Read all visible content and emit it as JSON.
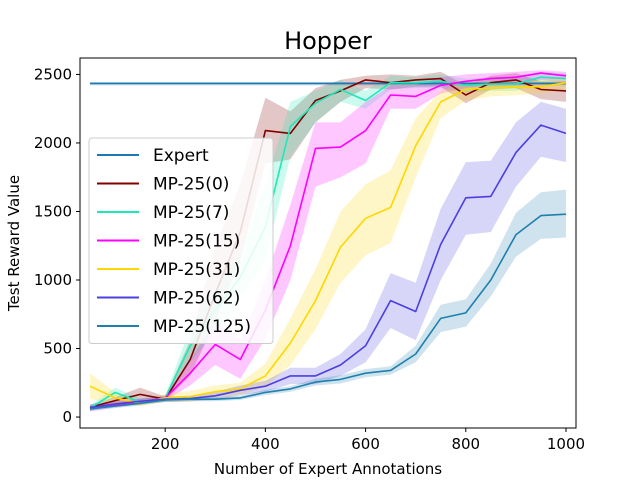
{
  "chart_data": {
    "type": "line",
    "title": "Hopper",
    "xlabel": "Number of Expert Annotations",
    "ylabel": "Test Reward Value",
    "xlim": [
      30,
      1020
    ],
    "ylim": [
      -80,
      2620
    ],
    "xticks": [
      200,
      400,
      600,
      800,
      1000
    ],
    "yticks": [
      0,
      500,
      1000,
      1500,
      2000,
      2500
    ],
    "grid": false,
    "legend_position": "center-left",
    "x": [
      50,
      100,
      150,
      200,
      250,
      300,
      350,
      400,
      450,
      500,
      550,
      600,
      650,
      700,
      750,
      800,
      850,
      900,
      950,
      1000
    ],
    "series": [
      {
        "name": "Expert",
        "color": "#1f77b4",
        "values": [
          2435,
          2435,
          2435,
          2435,
          2435,
          2435,
          2435,
          2435,
          2435,
          2435,
          2435,
          2435,
          2435,
          2435,
          2435,
          2435,
          2435,
          2435,
          2435,
          2435
        ],
        "lower": [
          2420,
          2420,
          2420,
          2420,
          2420,
          2420,
          2420,
          2420,
          2420,
          2420,
          2420,
          2420,
          2420,
          2420,
          2420,
          2420,
          2420,
          2420,
          2420,
          2420
        ],
        "upper": [
          2445,
          2445,
          2445,
          2445,
          2445,
          2445,
          2445,
          2445,
          2445,
          2445,
          2445,
          2445,
          2445,
          2445,
          2445,
          2445,
          2445,
          2445,
          2445,
          2445
        ]
      },
      {
        "name": "MP-25(0)",
        "color": "#800000",
        "values": [
          70,
          120,
          165,
          130,
          420,
          900,
          1350,
          2090,
          2070,
          2310,
          2380,
          2460,
          2440,
          2460,
          2470,
          2350,
          2440,
          2460,
          2390,
          2380
        ],
        "lower": [
          50,
          95,
          120,
          115,
          300,
          700,
          1150,
          1850,
          1880,
          2150,
          2300,
          2400,
          2390,
          2410,
          2410,
          2290,
          2390,
          2400,
          2320,
          2300
        ],
        "upper": [
          90,
          145,
          215,
          150,
          560,
          1250,
          1700,
          2330,
          2230,
          2400,
          2460,
          2490,
          2500,
          2490,
          2520,
          2420,
          2490,
          2510,
          2450,
          2450
        ]
      },
      {
        "name": "MP-25(7)",
        "color": "#1de9b6",
        "values": [
          65,
          180,
          110,
          140,
          520,
          780,
          1020,
          1390,
          2120,
          2290,
          2390,
          2310,
          2440,
          2440,
          2450,
          2420,
          2430,
          2430,
          2480,
          2470
        ],
        "lower": [
          45,
          140,
          90,
          120,
          400,
          620,
          860,
          1150,
          1900,
          2150,
          2300,
          2250,
          2390,
          2400,
          2400,
          2370,
          2380,
          2380,
          2440,
          2420
        ],
        "upper": [
          85,
          215,
          135,
          160,
          650,
          950,
          1200,
          1700,
          2300,
          2380,
          2460,
          2380,
          2490,
          2480,
          2500,
          2470,
          2480,
          2480,
          2520,
          2510
        ]
      },
      {
        "name": "MP-25(15)",
        "color": "#ff00ff",
        "values": [
          60,
          90,
          110,
          140,
          320,
          530,
          420,
          780,
          1250,
          1960,
          1970,
          2090,
          2350,
          2340,
          2420,
          2450,
          2470,
          2480,
          2510,
          2490
        ],
        "lower": [
          40,
          70,
          90,
          120,
          230,
          380,
          280,
          570,
          1000,
          1680,
          1750,
          1850,
          2250,
          2250,
          2360,
          2400,
          2420,
          2420,
          2460,
          2440
        ],
        "upper": [
          80,
          110,
          130,
          160,
          420,
          700,
          560,
          1000,
          1550,
          2150,
          2150,
          2300,
          2420,
          2420,
          2480,
          2500,
          2510,
          2520,
          2530,
          2520
        ]
      },
      {
        "name": "MP-25(31)",
        "color": "#ffd700",
        "values": [
          225,
          140,
          100,
          140,
          150,
          185,
          205,
          300,
          540,
          850,
          1240,
          1450,
          1530,
          1980,
          2300,
          2390,
          2400,
          2410,
          2410,
          2440
        ],
        "lower": [
          130,
          100,
          80,
          110,
          110,
          140,
          160,
          220,
          380,
          640,
          980,
          1180,
          1270,
          1750,
          2180,
          2310,
          2340,
          2350,
          2360,
          2390
        ],
        "upper": [
          320,
          180,
          120,
          170,
          190,
          230,
          250,
          390,
          720,
          1080,
          1500,
          1700,
          1800,
          2180,
          2380,
          2450,
          2450,
          2450,
          2460,
          2480
        ]
      },
      {
        "name": "MP-25(62)",
        "color": "#4b3fe0",
        "values": [
          70,
          95,
          115,
          130,
          135,
          155,
          195,
          225,
          300,
          300,
          380,
          520,
          850,
          770,
          1260,
          1600,
          1610,
          1930,
          2130,
          2070
        ],
        "lower": [
          50,
          75,
          95,
          110,
          115,
          125,
          160,
          185,
          240,
          240,
          300,
          400,
          650,
          560,
          1000,
          1330,
          1350,
          1680,
          1900,
          1860
        ],
        "upper": [
          90,
          115,
          135,
          150,
          155,
          185,
          230,
          265,
          360,
          360,
          460,
          640,
          1050,
          980,
          1520,
          1860,
          1870,
          2150,
          2300,
          2250
        ]
      },
      {
        "name": "MP-25(125)",
        "color": "#1f7fad",
        "values": [
          60,
          80,
          100,
          125,
          130,
          130,
          140,
          180,
          205,
          255,
          275,
          320,
          340,
          460,
          720,
          760,
          1000,
          1330,
          1470,
          1480
        ],
        "lower": [
          45,
          65,
          85,
          110,
          115,
          115,
          125,
          160,
          185,
          230,
          245,
          290,
          310,
          400,
          620,
          660,
          880,
          1170,
          1300,
          1310
        ],
        "upper": [
          75,
          95,
          115,
          140,
          145,
          145,
          155,
          200,
          225,
          280,
          305,
          350,
          370,
          520,
          820,
          860,
          1120,
          1490,
          1640,
          1660
        ]
      }
    ]
  }
}
